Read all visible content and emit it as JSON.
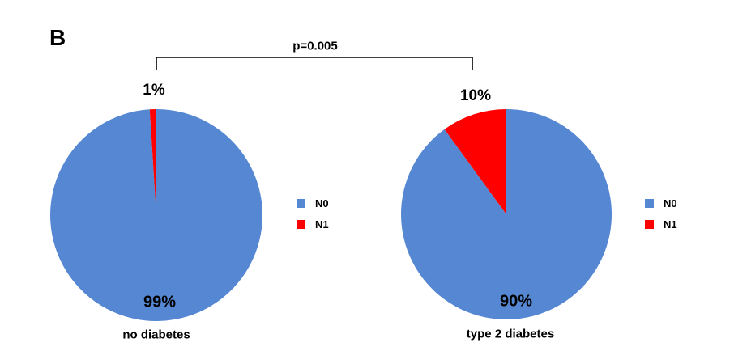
{
  "panel_label": "B",
  "comparison": {
    "p_label": "p=0.005"
  },
  "colors": {
    "n0_blue": "#5587D2",
    "n1_red": "#FF0000",
    "text": "#000000",
    "bracket": "#000000"
  },
  "chart_data": [
    {
      "type": "pie",
      "title": "no diabetes",
      "labels": [
        "N0",
        "N1"
      ],
      "values": [
        99,
        1
      ],
      "value_labels": [
        "99%",
        "1%"
      ],
      "colors": [
        "#5587D2",
        "#FF0000"
      ],
      "start_angle_deg": 0,
      "direction": "clockwise",
      "legend_position": "right"
    },
    {
      "type": "pie",
      "title": "type 2 diabetes",
      "labels": [
        "N0",
        "N1"
      ],
      "values": [
        90,
        10
      ],
      "value_labels": [
        "90%",
        "10%"
      ],
      "colors": [
        "#5587D2",
        "#FF0000"
      ],
      "start_angle_deg": 0,
      "direction": "clockwise",
      "legend_position": "right"
    }
  ]
}
